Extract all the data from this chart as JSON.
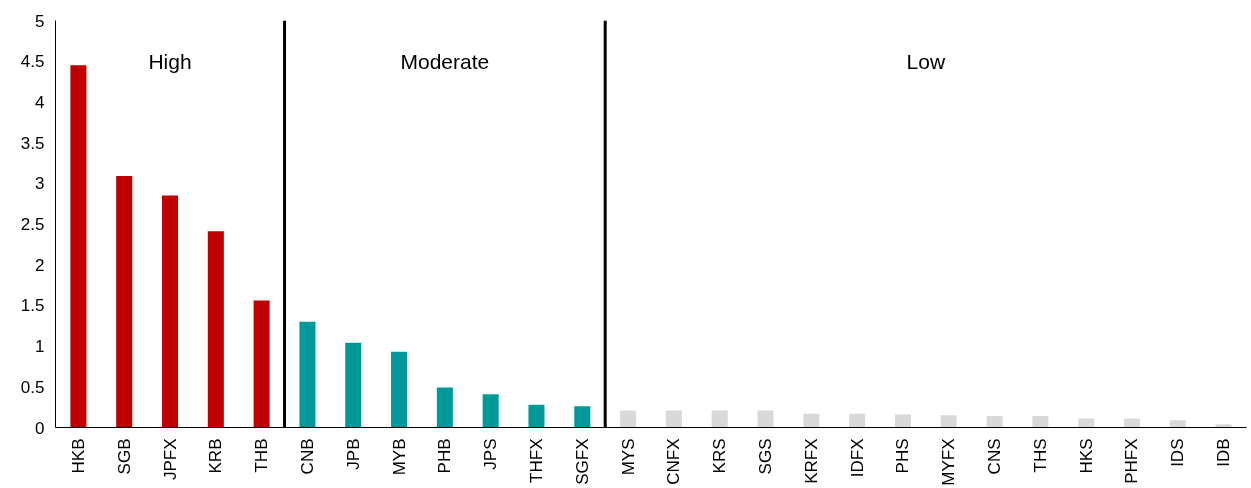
{
  "chart_data": {
    "type": "bar",
    "categories": [
      "HKB",
      "SGB",
      "JPFX",
      "KRB",
      "THB",
      "CNB",
      "JPB",
      "MYB",
      "PHB",
      "JPS",
      "THFX",
      "SGFX",
      "MYS",
      "CNFX",
      "KRS",
      "SGS",
      "KRFX",
      "IDFX",
      "PHS",
      "MYFX",
      "CNS",
      "THS",
      "HKS",
      "PHFX",
      "IDS",
      "IDB"
    ],
    "values": [
      4.45,
      3.09,
      2.85,
      2.41,
      1.56,
      1.3,
      1.04,
      0.93,
      0.49,
      0.41,
      0.28,
      0.26,
      0.21,
      0.21,
      0.21,
      0.21,
      0.17,
      0.17,
      0.16,
      0.15,
      0.14,
      0.14,
      0.11,
      0.11,
      0.09,
      0.04
    ],
    "colors": [
      "#c00000",
      "#c00000",
      "#c00000",
      "#c00000",
      "#c00000",
      "#009999",
      "#009999",
      "#009999",
      "#009999",
      "#009999",
      "#009999",
      "#009999",
      "#d9d9d9",
      "#d9d9d9",
      "#d9d9d9",
      "#d9d9d9",
      "#d9d9d9",
      "#d9d9d9",
      "#d9d9d9",
      "#d9d9d9",
      "#d9d9d9",
      "#d9d9d9",
      "#d9d9d9",
      "#d9d9d9",
      "#d9d9d9",
      "#d9d9d9"
    ],
    "ylim": [
      0,
      5
    ],
    "yticks": [
      0,
      0.5,
      1,
      1.5,
      2,
      2.5,
      3,
      3.5,
      4,
      4.5,
      5
    ],
    "grid": false,
    "annotations": [
      "High",
      "Moderate",
      "Low"
    ]
  }
}
